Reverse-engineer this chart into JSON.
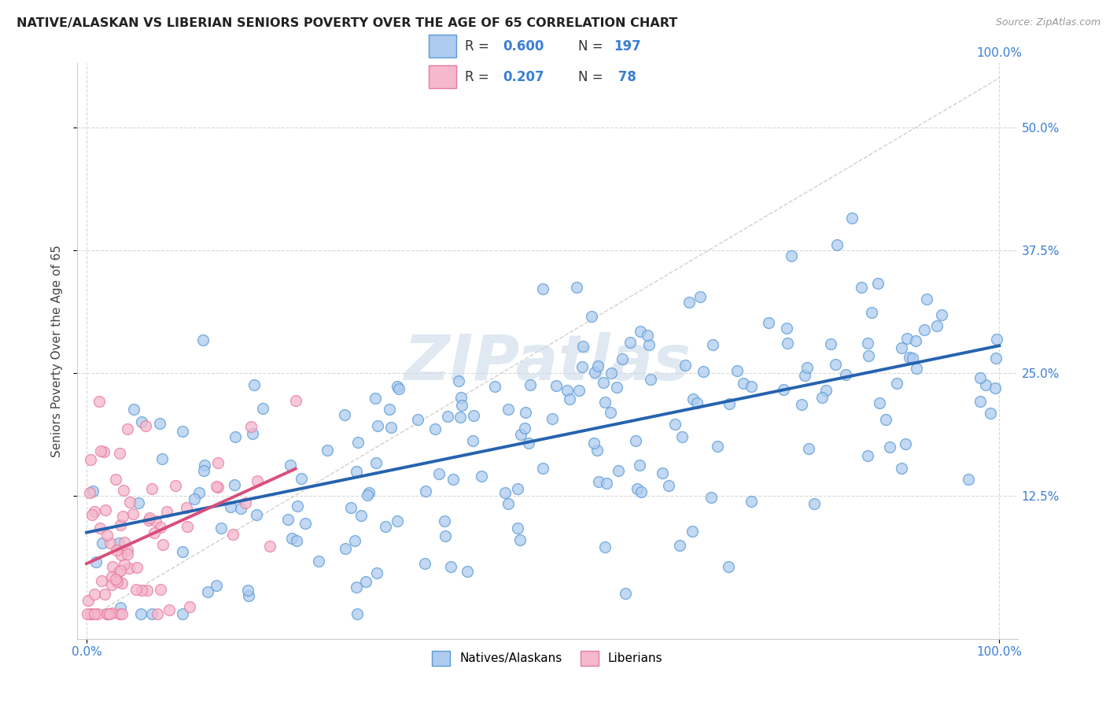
{
  "title": "NATIVE/ALASKAN VS LIBERIAN SENIORS POVERTY OVER THE AGE OF 65 CORRELATION CHART",
  "source": "Source: ZipAtlas.com",
  "ylabel": "Seniors Poverty Over the Age of 65",
  "blue_R": 0.6,
  "blue_N": 197,
  "pink_R": 0.207,
  "pink_N": 78,
  "blue_color": "#aecbf0",
  "pink_color": "#f5b8cc",
  "blue_edge_color": "#5b9bd5",
  "pink_edge_color": "#e87aa0",
  "blue_line_color": "#2563ae",
  "pink_line_color": "#d94f7a",
  "diag_line_color": "#c8c8c8",
  "legend_text_color": "#3a7fd5",
  "background_color": "#ffffff",
  "grid_color": "#d8d8d8",
  "watermark": "ZIPatlas",
  "seed_blue": 42,
  "seed_pink": 7,
  "xlim": [
    -0.01,
    1.02
  ],
  "ylim": [
    -0.02,
    0.565
  ]
}
